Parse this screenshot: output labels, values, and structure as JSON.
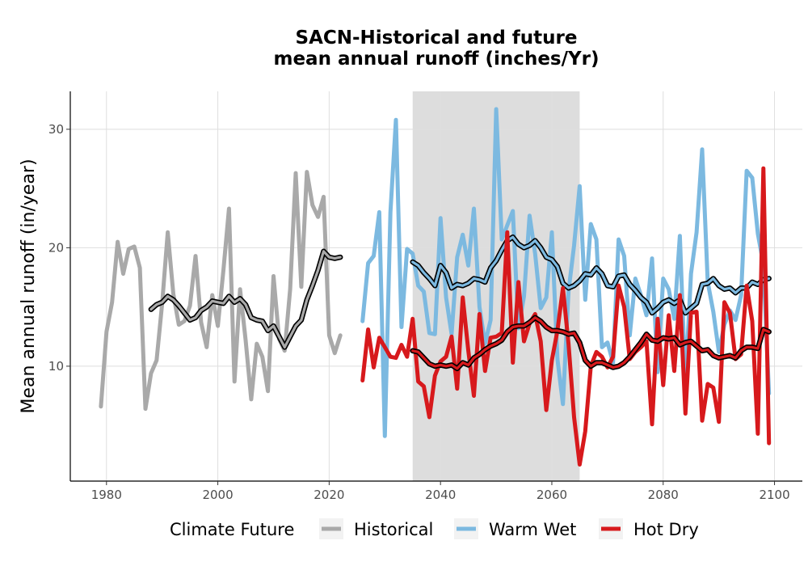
{
  "chart_data": {
    "type": "line",
    "title_line1": "SACN-Historical and future",
    "title_line2": "mean annual runoff (inches/Yr)",
    "xlabel": "",
    "ylabel": "Mean annual runoff (in/year)",
    "xlim": [
      1973.5,
      2105
    ],
    "ylim": [
      0.3,
      33.2
    ],
    "xticks": [
      1980,
      2000,
      2020,
      2040,
      2060,
      2080,
      2100
    ],
    "yticks": [
      10,
      20,
      30
    ],
    "grid": true,
    "shaded_period": {
      "start": 2035,
      "end": 2065
    },
    "legend": {
      "title": "Climate Future",
      "position": "bottom",
      "entries": [
        "Historical",
        "Warm Wet",
        "Hot Dry"
      ]
    },
    "colors": {
      "Historical": "#a9a9a9",
      "Warm Wet": "#7cb9e0",
      "Hot Dry": "#d7191c",
      "smooth": "#000000",
      "shade": "#dddddd"
    },
    "series": [
      {
        "name": "Historical",
        "x": [
          1979,
          1980,
          1981,
          1982,
          1983,
          1984,
          1985,
          1986,
          1987,
          1988,
          1989,
          1990,
          1991,
          1992,
          1993,
          1994,
          1995,
          1996,
          1997,
          1998,
          1999,
          2000,
          2001,
          2002,
          2003,
          2004,
          2005,
          2006,
          2007,
          2008,
          2009,
          2010,
          2011,
          2012,
          2013,
          2014,
          2015,
          2016,
          2017,
          2018,
          2019,
          2020,
          2021,
          2022
        ],
        "y": [
          6.6,
          12.9,
          15.4,
          20.5,
          17.8,
          19.9,
          20.1,
          18.3,
          6.4,
          9.4,
          10.5,
          15.3,
          21.3,
          16.1,
          13.5,
          13.8,
          15.1,
          19.3,
          13.7,
          11.6,
          16.0,
          13.4,
          18.1,
          23.3,
          8.7,
          16.5,
          12.2,
          7.2,
          11.9,
          10.8,
          7.9,
          17.6,
          12.3,
          11.3,
          16.5,
          26.3,
          16.7,
          26.4,
          23.6,
          22.6,
          24.3,
          12.6,
          11.1,
          12.6
        ]
      },
      {
        "name": "Historical smooth",
        "x": [
          1988,
          1989,
          1990,
          1991,
          1992,
          1993,
          1994,
          1995,
          1996,
          1997,
          1998,
          1999,
          2000,
          2001,
          2002,
          2003,
          2004,
          2005,
          2006,
          2007,
          2008,
          2009,
          2010,
          2011,
          2012,
          2013,
          2014,
          2015,
          2016,
          2017,
          2018,
          2019,
          2020,
          2021,
          2022
        ],
        "y": [
          14.8,
          15.2,
          15.4,
          15.9,
          15.6,
          15.1,
          14.5,
          13.9,
          14.1,
          14.7,
          15.0,
          15.5,
          15.4,
          15.3,
          15.9,
          15.4,
          15.7,
          15.2,
          14.1,
          13.9,
          13.8,
          13.0,
          13.4,
          12.5,
          11.6,
          12.5,
          13.4,
          13.9,
          15.6,
          16.8,
          18.1,
          19.7,
          19.2,
          19.1,
          19.2
        ]
      },
      {
        "name": "Warm Wet",
        "x": [
          2026,
          2027,
          2028,
          2029,
          2030,
          2031,
          2032,
          2033,
          2034,
          2035,
          2036,
          2037,
          2038,
          2039,
          2040,
          2041,
          2042,
          2043,
          2044,
          2045,
          2046,
          2047,
          2048,
          2049,
          2050,
          2051,
          2052,
          2053,
          2054,
          2055,
          2056,
          2057,
          2058,
          2059,
          2060,
          2061,
          2062,
          2063,
          2064,
          2065,
          2066,
          2067,
          2068,
          2069,
          2070,
          2071,
          2072,
          2073,
          2074,
          2075,
          2076,
          2077,
          2078,
          2079,
          2080,
          2081,
          2082,
          2083,
          2084,
          2085,
          2086,
          2087,
          2088,
          2089,
          2090,
          2091,
          2092,
          2093,
          2094,
          2095,
          2096,
          2097,
          2098,
          2099
        ],
        "y": [
          13.8,
          18.7,
          19.3,
          23.0,
          4.1,
          23.0,
          30.8,
          13.3,
          19.9,
          19.5,
          16.8,
          16.3,
          12.8,
          12.7,
          22.5,
          15.8,
          12.7,
          19.2,
          21.1,
          18.5,
          23.3,
          15.0,
          11.9,
          13.9,
          31.7,
          20.7,
          21.9,
          23.1,
          13.2,
          15.9,
          22.7,
          19.5,
          14.9,
          15.8,
          21.3,
          10.6,
          6.8,
          16.3,
          20.2,
          25.2,
          15.6,
          22.0,
          20.7,
          11.6,
          12.0,
          10.3,
          20.7,
          19.3,
          12.6,
          17.4,
          16.0,
          14.3,
          19.1,
          9.5,
          17.4,
          16.5,
          14.0,
          21.0,
          8.5,
          17.8,
          21.3,
          28.3,
          17.1,
          14.6,
          11.2,
          13.5,
          14.7,
          13.9,
          16.0,
          26.5,
          25.9,
          21.2,
          18.6,
          7.7
        ]
      },
      {
        "name": "Warm Wet smooth",
        "x": [
          2035,
          2036,
          2037,
          2038,
          2039,
          2040,
          2041,
          2042,
          2043,
          2044,
          2045,
          2046,
          2047,
          2048,
          2049,
          2050,
          2051,
          2052,
          2053,
          2054,
          2055,
          2056,
          2057,
          2058,
          2059,
          2060,
          2061,
          2062,
          2063,
          2064,
          2065,
          2066,
          2067,
          2068,
          2069,
          2070,
          2071,
          2072,
          2073,
          2074,
          2075,
          2076,
          2077,
          2078,
          2079,
          2080,
          2081,
          2082,
          2083,
          2084,
          2085,
          2086,
          2087,
          2088,
          2089,
          2090,
          2091,
          2092,
          2093,
          2094,
          2095,
          2096,
          2097,
          2098,
          2099
        ],
        "y": [
          18.8,
          18.5,
          17.9,
          17.4,
          16.8,
          18.5,
          17.9,
          16.6,
          16.9,
          16.8,
          17.0,
          17.4,
          17.3,
          17.1,
          18.3,
          18.9,
          19.8,
          20.6,
          20.9,
          20.3,
          20.0,
          20.2,
          20.6,
          20.0,
          19.2,
          19.0,
          18.4,
          17.0,
          16.6,
          16.8,
          17.2,
          17.8,
          17.7,
          18.3,
          17.8,
          16.8,
          16.7,
          17.6,
          17.7,
          16.9,
          16.4,
          15.8,
          15.4,
          14.5,
          14.9,
          15.4,
          15.6,
          15.3,
          15.6,
          14.5,
          14.9,
          15.3,
          16.9,
          17.0,
          17.4,
          16.8,
          16.5,
          16.6,
          16.2,
          16.6,
          16.6,
          17.1,
          16.9,
          17.3,
          17.4
        ]
      },
      {
        "name": "Hot Dry",
        "x": [
          2026,
          2027,
          2028,
          2029,
          2030,
          2031,
          2032,
          2033,
          2034,
          2035,
          2036,
          2037,
          2038,
          2039,
          2040,
          2041,
          2042,
          2043,
          2044,
          2045,
          2046,
          2047,
          2048,
          2049,
          2050,
          2051,
          2052,
          2053,
          2054,
          2055,
          2056,
          2057,
          2058,
          2059,
          2060,
          2061,
          2062,
          2063,
          2064,
          2065,
          2066,
          2067,
          2068,
          2069,
          2070,
          2071,
          2072,
          2073,
          2074,
          2075,
          2076,
          2077,
          2078,
          2079,
          2080,
          2081,
          2082,
          2083,
          2084,
          2085,
          2086,
          2087,
          2088,
          2089,
          2090,
          2091,
          2092,
          2093,
          2094,
          2095,
          2096,
          2097,
          2098,
          2099
        ],
        "y": [
          8.8,
          13.1,
          9.9,
          12.4,
          11.6,
          10.8,
          10.7,
          11.8,
          10.8,
          14.0,
          8.7,
          8.3,
          5.7,
          9.2,
          10.4,
          10.8,
          12.5,
          8.1,
          15.8,
          11.3,
          7.5,
          14.4,
          9.6,
          12.4,
          12.5,
          12.8,
          21.3,
          10.3,
          17.1,
          12.1,
          13.6,
          14.4,
          12.1,
          6.3,
          10.5,
          13.0,
          16.6,
          11.9,
          5.7,
          1.7,
          4.5,
          10.0,
          11.2,
          10.8,
          9.9,
          10.8,
          16.8,
          15.0,
          10.6,
          11.2,
          11.6,
          12.1,
          5.1,
          14.0,
          8.4,
          14.3,
          9.6,
          16.0,
          6.0,
          14.5,
          14.6,
          5.4,
          8.5,
          8.2,
          5.3,
          15.4,
          14.5,
          10.6,
          11.0,
          16.8,
          13.8,
          4.3,
          26.7,
          3.5
        ]
      },
      {
        "name": "Hot Dry smooth",
        "x": [
          2035,
          2036,
          2037,
          2038,
          2039,
          2040,
          2041,
          2042,
          2043,
          2044,
          2045,
          2046,
          2047,
          2048,
          2049,
          2050,
          2051,
          2052,
          2053,
          2054,
          2055,
          2056,
          2057,
          2058,
          2059,
          2060,
          2061,
          2062,
          2063,
          2064,
          2065,
          2066,
          2067,
          2068,
          2069,
          2070,
          2071,
          2072,
          2073,
          2074,
          2075,
          2076,
          2077,
          2078,
          2079,
          2080,
          2081,
          2082,
          2083,
          2084,
          2085,
          2086,
          2087,
          2088,
          2089,
          2090,
          2091,
          2092,
          2093,
          2094,
          2095,
          2096,
          2097,
          2098,
          2099
        ],
        "y": [
          11.3,
          11.2,
          10.7,
          10.2,
          10.0,
          10.1,
          10.0,
          10.1,
          9.8,
          10.3,
          10.1,
          10.7,
          11.0,
          11.4,
          11.7,
          11.9,
          12.2,
          12.9,
          13.3,
          13.4,
          13.4,
          13.7,
          14.1,
          13.8,
          13.3,
          13.0,
          13.0,
          12.9,
          12.7,
          12.8,
          12.0,
          10.5,
          10.0,
          10.3,
          10.3,
          10.1,
          9.9,
          10.0,
          10.3,
          10.8,
          11.4,
          12.0,
          12.7,
          12.2,
          12.1,
          12.4,
          12.3,
          12.4,
          11.8,
          12.0,
          12.1,
          11.7,
          11.3,
          11.4,
          10.9,
          10.7,
          10.8,
          10.9,
          10.7,
          11.3,
          11.6,
          11.6,
          11.5,
          13.1,
          12.9
        ]
      }
    ]
  }
}
